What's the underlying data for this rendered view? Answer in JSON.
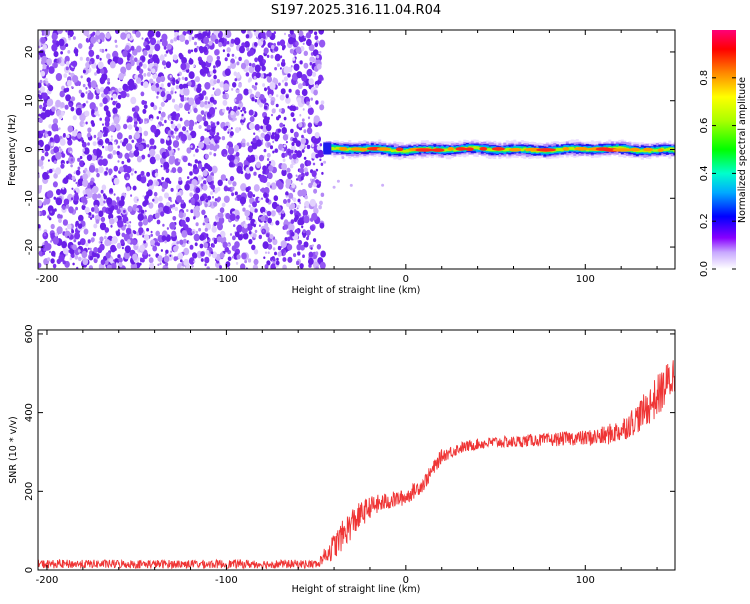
{
  "title": "S197.2025.316.11.04.R04",
  "colors": {
    "noise": "#7a2ff0",
    "snr_line": "#ef3535"
  },
  "chart_data": [
    {
      "type": "heatmap",
      "title": "S197.2025.316.11.04.R04",
      "xlabel": "Height of straight line (km)",
      "ylabel": "Frequency (Hz)",
      "xlim": [
        -205,
        150
      ],
      "ylim": [
        -24.5,
        24.5
      ],
      "x_ticks": [
        -200,
        -100,
        0,
        100
      ],
      "x_tick_labels": [
        "-200",
        "-100",
        "0",
        "100"
      ],
      "y_ticks": [
        -20,
        -10,
        0,
        10,
        20
      ],
      "y_tick_labels": [
        "-20",
        "-10",
        "0",
        "10",
        "20"
      ],
      "noise_region_x": [
        -205,
        -46
      ],
      "signal_onset_x": -46,
      "signal_frequency_hz": 0,
      "colorbar": {
        "label": "Normalized spectral amplitude",
        "range": [
          0,
          1
        ],
        "ticks": [
          0.0,
          0.2,
          0.4,
          0.6,
          0.8
        ],
        "tick_labels": [
          "0.0",
          "0.2",
          "0.4",
          "0.6",
          "0.8"
        ]
      }
    },
    {
      "type": "line",
      "xlabel": "Height of straight line (km)",
      "ylabel": "SNR (10 * v/v)",
      "xlim": [
        -205,
        150
      ],
      "ylim": [
        0,
        610
      ],
      "x_ticks": [
        -200,
        -100,
        0,
        100
      ],
      "x_tick_labels": [
        "-200",
        "-100",
        "0",
        "100"
      ],
      "y_ticks": [
        0,
        200,
        400,
        600
      ],
      "y_tick_labels": [
        "0",
        "200",
        "400",
        "600"
      ],
      "series": [
        {
          "name": "SNR",
          "x": [
            -205,
            -50,
            -40,
            -30,
            -20,
            -10,
            0,
            10,
            20,
            30,
            40,
            50,
            60,
            70,
            80,
            90,
            100,
            110,
            120,
            130,
            140,
            150
          ],
          "y": [
            15,
            15,
            60,
            120,
            160,
            175,
            185,
            220,
            290,
            310,
            320,
            325,
            325,
            330,
            330,
            335,
            335,
            340,
            355,
            390,
            440,
            500
          ],
          "band": [
            12,
            12,
            70,
            80,
            55,
            45,
            40,
            40,
            35,
            30,
            28,
            30,
            30,
            32,
            34,
            36,
            40,
            50,
            60,
            80,
            110,
            110
          ]
        }
      ]
    }
  ]
}
